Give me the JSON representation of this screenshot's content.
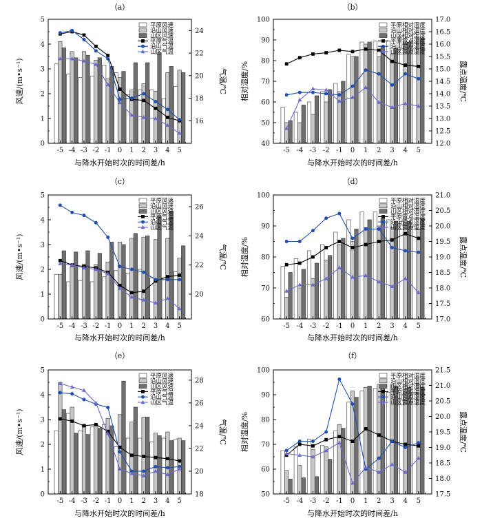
{
  "colors": {
    "plain_bar": "#ffffff",
    "coastal_bar": "#c8c8c8",
    "mountain_bar": "#6f6f6f",
    "bar_stroke": "#333333",
    "plain_line": "#000000",
    "coastal_line": "#1f4fb0",
    "mountain_line": "#6a6ad0"
  },
  "chart_data": [
    {
      "type": "bar+line",
      "panel": "（a）",
      "x": [
        -5,
        -4,
        -3,
        -2,
        -1,
        0,
        1,
        2,
        3,
        4,
        5
      ],
      "xlabel": "与降水开始时次的时间差/h",
      "ylabel": "风速/(m•s⁻¹)",
      "y2label": "气温/℃",
      "ylim": [
        0,
        5
      ],
      "yticks": [
        "0",
        "1",
        "2",
        "3",
        "4",
        "5"
      ],
      "y2lim": [
        14,
        25
      ],
      "y2ticks": [
        "16",
        "18",
        "20",
        "22",
        "24"
      ],
      "legend": [
        "平原风速",
        "沿山风速",
        "山区风速",
        "平原气温",
        "沿山气温",
        "山区气温"
      ],
      "bars": [
        {
          "name": "平原风速",
          "values": [
            3.2,
            2.8,
            2.65,
            2.7,
            3.15,
            2.85,
            1.95,
            2.15,
            2.15,
            1.8,
            2.3
          ]
        },
        {
          "name": "沿山风速",
          "values": [
            4.1,
            3.7,
            3.7,
            3.35,
            2.6,
            2.65,
            2.15,
            2.4,
            2.1,
            2.85,
            2.95
          ]
        },
        {
          "name": "山区风速",
          "values": [
            3.85,
            3.45,
            3.55,
            3.45,
            3.1,
            2.9,
            3.25,
            3.25,
            3.65,
            3.1,
            2.85
          ]
        }
      ],
      "lines": [
        {
          "name": "平原气温",
          "values": [
            23.7,
            23.9,
            23.6,
            22.6,
            21.8,
            18.8,
            17.9,
            17.8,
            17.1,
            16.3,
            16.0
          ]
        },
        {
          "name": "沿山气温",
          "values": [
            23.8,
            24.0,
            23.2,
            22.2,
            21.5,
            17.9,
            18.0,
            18.4,
            17.7,
            17.0,
            16.1
          ]
        },
        {
          "name": "山区气温",
          "values": [
            21.5,
            21.5,
            21.3,
            21.0,
            19.2,
            17.6,
            16.5,
            16.3,
            16.2,
            15.6,
            14.9
          ]
        }
      ]
    },
    {
      "type": "bar+line",
      "panel": "（b）",
      "x": [
        -5,
        -4,
        -3,
        -2,
        -1,
        0,
        1,
        2,
        3,
        4,
        5
      ],
      "xlabel": "与降水开始时次的时间差/h",
      "ylabel": "相对湿度/%",
      "y2label": "露点温度/℃",
      "ylim": [
        40,
        100
      ],
      "yticks": [
        "40",
        "50",
        "60",
        "70",
        "80",
        "90",
        "100"
      ],
      "y2lim": [
        12.0,
        17.0
      ],
      "y2ticks": [
        "12.0",
        "12.5",
        "13.0",
        "13.5",
        "14.0",
        "14.5",
        "15.0",
        "15.5",
        "16.0",
        "16.5",
        "17.0"
      ],
      "legend": [
        "平原相对湿度",
        "沿山相对湿度",
        "山区相对湿度",
        "平原露点温度",
        "沿山露点温度",
        "山区露点温度"
      ],
      "bars": [
        {
          "name": "平原相对湿度",
          "values": [
            57.5,
            55.0,
            60.0,
            65.0,
            69.0,
            83.0,
            89.0,
            89.5,
            89.5,
            92.0,
            93.0
          ]
        },
        {
          "name": "沿山相对湿度",
          "values": [
            50.0,
            50.0,
            54.0,
            60.0,
            65.0,
            82.0,
            88.0,
            82.0,
            83.0,
            88.0,
            90.5
          ]
        },
        {
          "name": "山区相对湿度",
          "values": [
            51.0,
            58.5,
            63.0,
            66.0,
            70.0,
            82.0,
            89.0,
            87.0,
            86.0,
            89.0,
            91.0
          ]
        }
      ],
      "lines": [
        {
          "name": "平原露点温度",
          "values": [
            15.2,
            15.45,
            15.6,
            15.65,
            15.75,
            15.7,
            15.8,
            15.75,
            15.3,
            15.15,
            15.1
          ]
        },
        {
          "name": "沿山露点温度",
          "values": [
            13.95,
            14.05,
            14.05,
            14.0,
            13.95,
            14.3,
            14.95,
            14.8,
            14.35,
            14.8,
            14.6
          ]
        },
        {
          "name": "山区露点温度",
          "values": [
            12.6,
            13.75,
            14.2,
            14.15,
            13.7,
            13.85,
            14.25,
            13.65,
            13.45,
            13.6,
            13.5
          ]
        }
      ]
    },
    {
      "type": "bar+line",
      "panel": "（c）",
      "x": [
        -5,
        -4,
        -3,
        -2,
        -1,
        0,
        1,
        2,
        3,
        4,
        5
      ],
      "xlabel": "与降水开始时次的时间差/h",
      "ylabel": "风速/(m•s⁻¹)",
      "y2label": "气温/℃",
      "ylim": [
        0,
        5
      ],
      "yticks": [
        "0",
        "1",
        "2",
        "3",
        "4",
        "5"
      ],
      "y2lim": [
        18.3,
        26.8
      ],
      "y2ticks": [
        "20",
        "22",
        "24",
        "26"
      ],
      "legend": [
        "平原风速",
        "沿山风速",
        "山区风速",
        "平原气温",
        "沿山气温",
        "山区气温"
      ],
      "bars": [
        {
          "name": "平原风速",
          "values": [
            1.8,
            1.5,
            1.55,
            1.5,
            1.7,
            1.95,
            1.85,
            2.0,
            1.65,
            1.65,
            1.9
          ]
        },
        {
          "name": "沿山风速",
          "values": [
            1.8,
            2.1,
            2.2,
            2.2,
            2.3,
            3.1,
            3.25,
            3.3,
            3.2,
            3.25,
            2.45
          ]
        },
        {
          "name": "山区风速",
          "values": [
            2.75,
            2.7,
            2.75,
            2.65,
            3.1,
            3.0,
            3.45,
            3.35,
            4.15,
            4.35,
            2.95
          ]
        }
      ],
      "lines": [
        {
          "name": "平原气温",
          "values": [
            22.3,
            22.0,
            21.9,
            21.8,
            21.5,
            20.6,
            20.1,
            20.2,
            20.9,
            21.2,
            21.3
          ]
        },
        {
          "name": "沿山气温",
          "values": [
            26.1,
            25.6,
            25.4,
            24.9,
            23.9,
            21.9,
            21.7,
            21.5,
            21.0,
            21.0,
            21.0
          ]
        },
        {
          "name": "山区气温",
          "values": [
            22.1,
            22.0,
            21.8,
            21.7,
            21.4,
            20.4,
            19.8,
            19.6,
            19.4,
            19.7,
            19.0
          ]
        }
      ]
    },
    {
      "type": "bar+line",
      "panel": "（d）",
      "x": [
        -5,
        -4,
        -3,
        -2,
        -1,
        0,
        1,
        2,
        3,
        4,
        5
      ],
      "xlabel": "与降水开始时次的时间差/h",
      "ylabel": "相对湿度/%",
      "y2label": "露点温度/℃",
      "ylim": [
        60,
        100
      ],
      "yticks": [
        "60",
        "70",
        "80",
        "90",
        "100"
      ],
      "y2lim": [
        17.0,
        21.0
      ],
      "y2ticks": [
        "17.0",
        "17.5",
        "18.0",
        "18.5",
        "19.0",
        "19.5",
        "20.0",
        "20.5",
        "21.0"
      ],
      "legend": [
        "平原相对湿度",
        "沿山相对湿度",
        "山区相对湿度",
        "平原露点温度",
        "沿山露点温度",
        "山区露点温度"
      ],
      "bars": [
        {
          "name": "平原相对湿度",
          "values": [
            77.0,
            79.5,
            82.0,
            84.0,
            88.0,
            92.0,
            94.5,
            94.5,
            92.0,
            91.5,
            90.0
          ]
        },
        {
          "name": "沿山相对湿度",
          "values": [
            67.0,
            70.0,
            73.0,
            79.0,
            84.0,
            85.0,
            89.5,
            90.0,
            89.5,
            91.0,
            89.0
          ]
        },
        {
          "name": "山区相对湿度",
          "values": [
            75.0,
            76.0,
            78.0,
            80.5,
            86.0,
            89.0,
            92.0,
            92.5,
            91.5,
            91.5,
            92.5
          ]
        }
      ],
      "lines": [
        {
          "name": "平原露点温度",
          "values": [
            18.75,
            18.8,
            19.0,
            19.3,
            19.5,
            19.3,
            19.4,
            19.5,
            19.55,
            19.75,
            19.6
          ]
        },
        {
          "name": "沿山露点温度",
          "values": [
            19.5,
            19.5,
            19.85,
            20.25,
            20.4,
            19.6,
            19.9,
            19.9,
            19.3,
            19.2,
            19.15
          ]
        },
        {
          "name": "山区露点温度",
          "values": [
            17.9,
            18.1,
            18.1,
            18.3,
            18.65,
            18.35,
            18.4,
            18.2,
            18.05,
            18.3,
            17.85
          ]
        }
      ]
    },
    {
      "type": "bar+line",
      "panel": "（e）",
      "x": [
        -5,
        -4,
        -3,
        -2,
        -1,
        0,
        1,
        2,
        3,
        4,
        5
      ],
      "xlabel": "与降水开始时次的时间差/h",
      "ylabel": "风速/(m•s⁻¹)",
      "y2label": "气温/℃",
      "ylim": [
        0,
        5
      ],
      "yticks": [
        "0",
        "1",
        "2",
        "3",
        "4",
        "5"
      ],
      "y2lim": [
        18,
        28.9
      ],
      "y2ticks": [
        "18",
        "20",
        "22",
        "24",
        "26",
        "28"
      ],
      "legend": [
        "平原风速",
        "沿山风速",
        "山区风速",
        "平原气温",
        "沿山气温",
        "山区气温"
      ],
      "bars": [
        {
          "name": "平原风速",
          "values": [
            2.55,
            3.25,
            2.55,
            2.7,
            2.8,
            1.9,
            2.25,
            2.25,
            2.1,
            2.25,
            2.2
          ]
        },
        {
          "name": "沿山风速",
          "values": [
            4.5,
            3.5,
            2.8,
            2.8,
            3.05,
            3.2,
            2.9,
            3.1,
            2.45,
            2.5,
            2.25
          ]
        },
        {
          "name": "山区风速",
          "values": [
            3.4,
            2.45,
            2.4,
            2.65,
            2.75,
            4.55,
            3.5,
            3.1,
            2.35,
            2.15,
            2.15
          ]
        }
      ],
      "lines": [
        {
          "name": "平原气温",
          "values": [
            24.6,
            24.4,
            24.0,
            24.1,
            23.5,
            22.1,
            21.4,
            21.3,
            21.2,
            21.1,
            20.9
          ]
        },
        {
          "name": "沿山气温",
          "values": [
            26.9,
            26.8,
            26.3,
            25.9,
            25.6,
            21.7,
            20.0,
            20.0,
            20.4,
            20.3,
            20.4
          ]
        },
        {
          "name": "山区气温",
          "values": [
            27.7,
            27.4,
            27.1,
            26.0,
            23.3,
            20.2,
            19.8,
            19.6,
            20.0,
            19.7,
            20.2
          ]
        }
      ]
    },
    {
      "type": "bar+line",
      "panel": "（f）",
      "x": [
        -5,
        -4,
        -3,
        -2,
        -1,
        0,
        1,
        2,
        3,
        4,
        5
      ],
      "xlabel": "与降水开始时次的时间差/h",
      "ylabel": "相对湿度/%",
      "y2label": "露点温度/℃",
      "ylim": [
        50,
        100
      ],
      "yticks": [
        "50",
        "60",
        "70",
        "80",
        "90",
        "100"
      ],
      "y2lim": [
        17.5,
        21.5
      ],
      "y2ticks": [
        "17.5",
        "18.0",
        "18.5",
        "19.0",
        "19.5",
        "20.0",
        "20.5",
        "21.0",
        "21.5"
      ],
      "legend": [
        "平原相对湿度",
        "沿山相对湿度",
        "山区相对湿度",
        "平原露点温度",
        "沿山露点温度",
        "山区露点温度"
      ],
      "bars": [
        {
          "name": "平原相对湿度",
          "values": [
            67.5,
            69.0,
            72.0,
            69.5,
            75.5,
            87.0,
            91.5,
            92.5,
            91.0,
            90.0,
            91.0
          ]
        },
        {
          "name": "沿山相对湿度",
          "values": [
            59.5,
            61.5,
            68.0,
            69.0,
            78.0,
            91.5,
            93.0,
            94.0,
            94.0,
            94.0,
            94.0
          ]
        },
        {
          "name": "山区相对湿度",
          "values": [
            56.0,
            56.5,
            57.0,
            64.0,
            76.5,
            89.0,
            93.5,
            93.0,
            93.5,
            93.0,
            93.0
          ]
        }
      ],
      "lines": [
        {
          "name": "平原露点温度",
          "values": [
            18.75,
            19.1,
            19.05,
            19.25,
            19.35,
            19.2,
            19.6,
            19.4,
            19.2,
            19.1,
            19.05
          ]
        },
        {
          "name": "沿山露点温度",
          "values": [
            18.9,
            19.2,
            19.2,
            19.5,
            21.2,
            20.4,
            18.3,
            18.65,
            19.2,
            19.0,
            19.15
          ]
        },
        {
          "name": "山区露点温度",
          "values": [
            18.8,
            18.75,
            18.7,
            18.9,
            19.15,
            17.85,
            18.35,
            18.2,
            18.45,
            18.2,
            18.65
          ]
        }
      ]
    }
  ]
}
